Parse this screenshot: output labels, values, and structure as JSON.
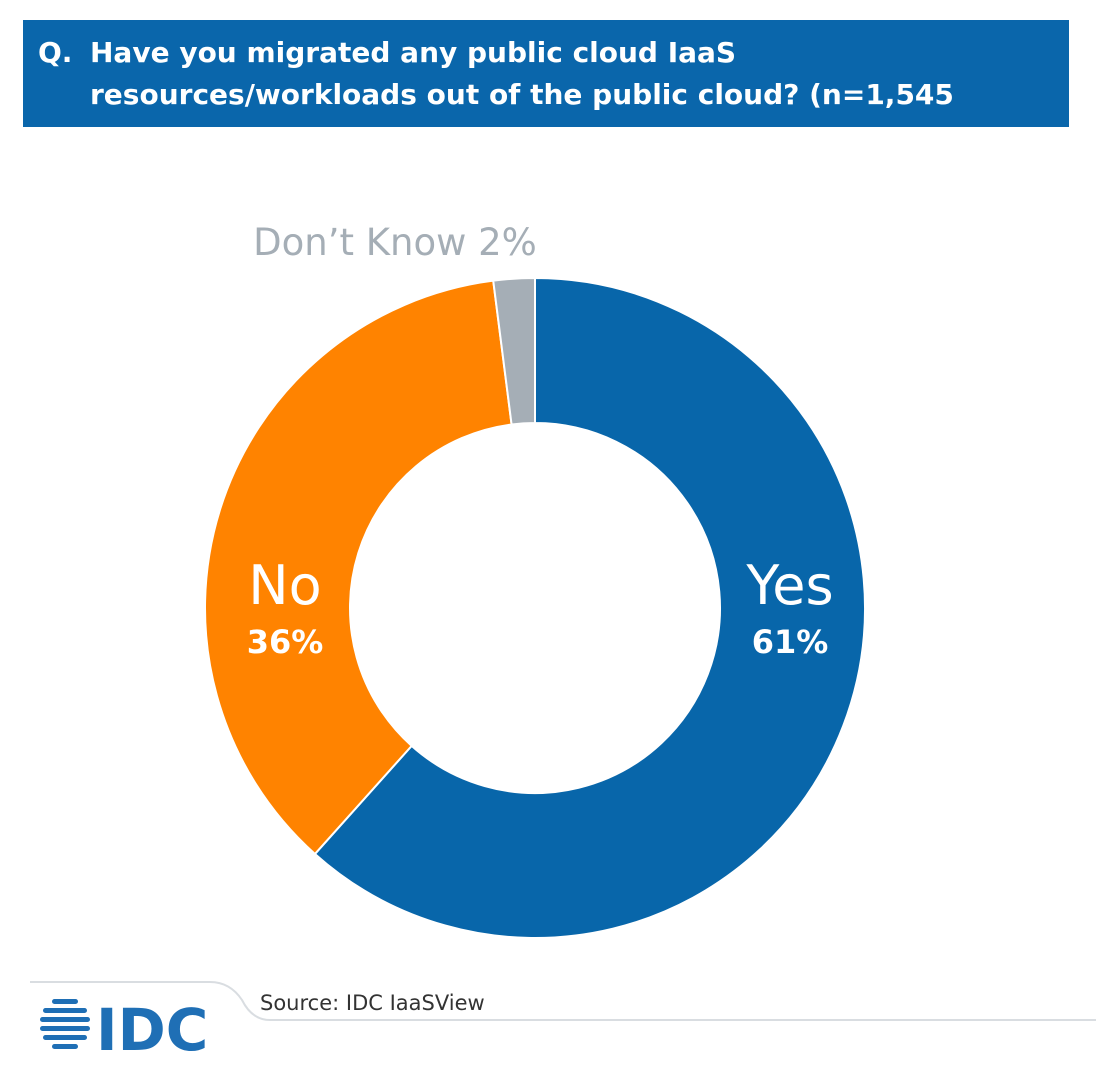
{
  "header": {
    "q_prefix": "Q.",
    "line1": "Have you migrated any public cloud IaaS",
    "line2": "resources/workloads out of the public cloud? (n=1,545"
  },
  "chart_data": {
    "type": "pie",
    "subtype": "donut",
    "slices": [
      {
        "name": "Yes",
        "value": 61,
        "value_label": "61%",
        "color": "#0866aa"
      },
      {
        "name": "No",
        "value": 36,
        "value_label": "36%",
        "color": "#ff8300"
      },
      {
        "name": "Don’t Know",
        "value": 2,
        "value_label": "2%",
        "color": "#a5aeb6"
      }
    ],
    "outside_label": "Don’t Know 2%"
  },
  "footer": {
    "source": "Source: IDC IaaSView",
    "logo_text": "IDC",
    "logo_color": "#1f6fb5"
  }
}
